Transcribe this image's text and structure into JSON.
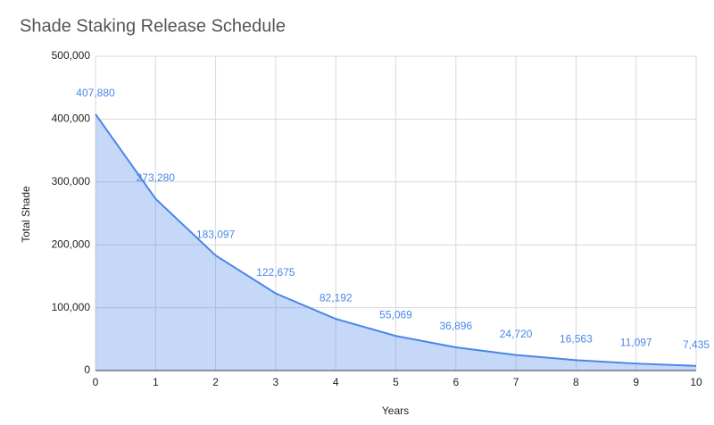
{
  "chart_data": {
    "type": "area",
    "title": "Shade Staking Release Schedule",
    "x_label": "Years",
    "y_label": "Total Shade",
    "x": [
      0,
      1,
      2,
      3,
      4,
      5,
      6,
      7,
      8,
      9,
      10
    ],
    "series": [
      {
        "name": "Total Shade",
        "color": "#4a86e8",
        "values": [
          407880,
          273280,
          183097,
          122675,
          82192,
          55069,
          36896,
          24720,
          16563,
          11097,
          7435
        ],
        "value_labels": [
          "407,880",
          "273,280",
          "183,097",
          "122,675",
          "82,192",
          "55,069",
          "36,896",
          "24,720",
          "16,563",
          "11,097",
          "7,435"
        ]
      }
    ],
    "xlim": [
      0,
      10
    ],
    "xticks": [
      0,
      1,
      2,
      3,
      4,
      5,
      6,
      7,
      8,
      9,
      10
    ],
    "ylim": [
      0,
      500000
    ],
    "yticks": [
      0,
      {
        "value": 100000,
        "label": "100,000"
      },
      {
        "value": 200000,
        "label": "200,000"
      },
      {
        "value": 300000,
        "label": "300,000"
      },
      {
        "value": 400000,
        "label": "400,000"
      },
      {
        "value": 500000,
        "label": "500,000"
      }
    ],
    "grid": true
  }
}
